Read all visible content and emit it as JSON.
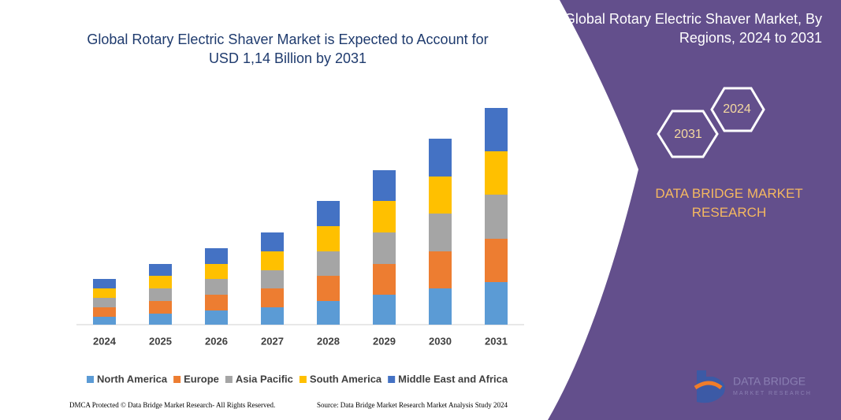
{
  "chart_data": {
    "type": "stacked-bar",
    "title": "Global Rotary Electric Shaver Market is Expected to Account for USD 1,14 Billion by 2031",
    "categories": [
      "2024",
      "2025",
      "2026",
      "2027",
      "2028",
      "2029",
      "2030",
      "2031"
    ],
    "series": [
      {
        "name": "North America",
        "color": "#5b9bd5",
        "values": [
          10,
          14,
          18,
          22,
          30,
          38,
          46,
          54
        ]
      },
      {
        "name": "Europe",
        "color": "#ed7d31",
        "values": [
          12,
          16,
          20,
          24,
          32,
          39,
          47,
          55
        ]
      },
      {
        "name": "Asia Pacific",
        "color": "#a5a5a5",
        "values": [
          12,
          16,
          20,
          23,
          31,
          40,
          48,
          56
        ]
      },
      {
        "name": "South America",
        "color": "#ffc000",
        "values": [
          12,
          16,
          19,
          24,
          32,
          40,
          47,
          55
        ]
      },
      {
        "name": "Middle East and Africa",
        "color": "#4472c4",
        "values": [
          12,
          15,
          20,
          24,
          32,
          39,
          48,
          55
        ]
      }
    ]
  },
  "panel": {
    "title": "Global Rotary Electric Shaver Market, By Regions, 2024 to 2031",
    "hex_left": "2031",
    "hex_right": "2024",
    "brand": "DATA BRIDGE MARKET RESEARCH",
    "logo_line1": "DATA BRIDGE",
    "logo_line2": "MARKET RESEARCH"
  },
  "footer": {
    "left": "DMCA Protected © Data Bridge Market Research- All Rights Reserved.",
    "right": "Source: Data Bridge Market Research Market Analysis Study 2024"
  }
}
